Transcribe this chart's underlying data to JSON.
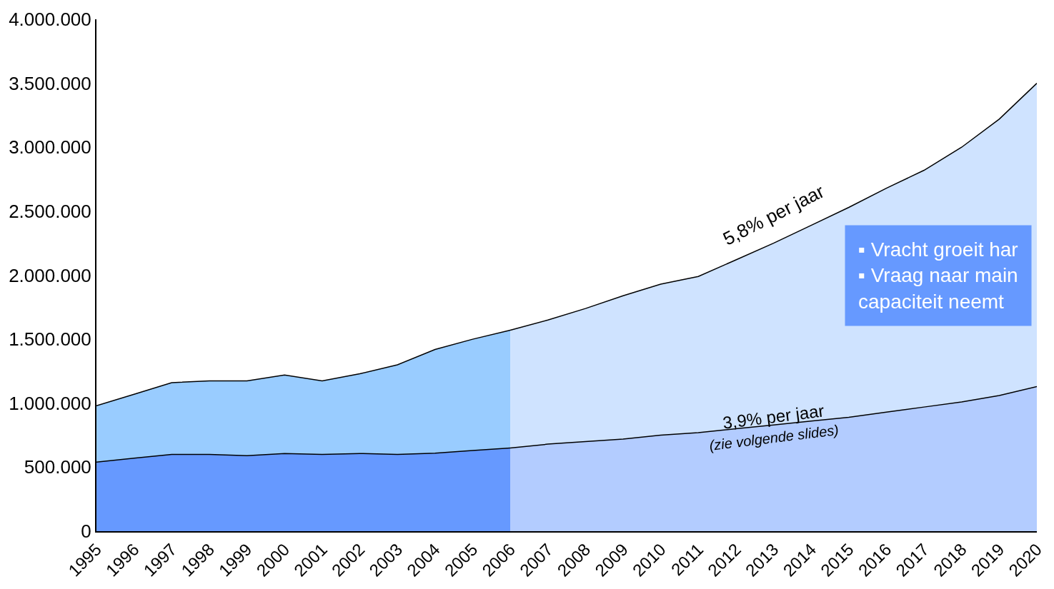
{
  "chart_data": {
    "type": "area",
    "categories": [
      "1995",
      "1996",
      "1997",
      "1998",
      "1999",
      "2000",
      "2001",
      "2002",
      "2003",
      "2004",
      "2005",
      "2006",
      "2007",
      "2008",
      "2009",
      "2010",
      "2011",
      "2012",
      "2013",
      "2014",
      "2015",
      "2016",
      "2017",
      "2018",
      "2019",
      "2020"
    ],
    "series": [
      {
        "color": "#99ccff",
        "values": [
          980000,
          1070000,
          1160000,
          1175000,
          1175000,
          1220000,
          1175000,
          1230000,
          1300000,
          1420000,
          1500000,
          1570000,
          null,
          null,
          null,
          null,
          null,
          null,
          null,
          null,
          null,
          null,
          null,
          null,
          null,
          null
        ]
      },
      {
        "color": "#6699ff",
        "values": [
          540000,
          570000,
          600000,
          600000,
          590000,
          607000,
          600000,
          607000,
          600000,
          610000,
          630000,
          650000,
          null,
          null,
          null,
          null,
          null,
          null,
          null,
          null,
          null,
          null,
          null,
          null,
          null,
          null
        ]
      },
      {
        "color": "#cfe3ff",
        "values": [
          null,
          null,
          null,
          null,
          null,
          null,
          null,
          null,
          null,
          null,
          null,
          1570000,
          1650000,
          1740000,
          1840000,
          1930000,
          1990000,
          2120000,
          2250000,
          2390000,
          2530000,
          2680000,
          2820000,
          3000000,
          3220000,
          3500000
        ]
      },
      {
        "color": "#b3ccff",
        "values": [
          null,
          null,
          null,
          null,
          null,
          null,
          null,
          null,
          null,
          null,
          null,
          650000,
          680000,
          700000,
          720000,
          750000,
          770000,
          800000,
          830000,
          860000,
          890000,
          930000,
          970000,
          1010000,
          1060000,
          1130000
        ]
      }
    ],
    "ylim": [
      0,
      4000000
    ],
    "yticks": [
      0,
      {
        "value": 500000,
        "label": "500.000"
      },
      {
        "value": 1000000,
        "label": "1.000.000"
      },
      {
        "value": 1500000,
        "label": "1.500.000"
      },
      {
        "value": 2000000,
        "label": "2.000.000"
      },
      {
        "value": 2500000,
        "label": "2.500.000"
      },
      {
        "value": 3000000,
        "label": "3.000.000"
      },
      {
        "value": 3500000,
        "label": "3.500.000"
      },
      {
        "value": 4000000,
        "label": "4.000.000"
      }
    ],
    "annotations": [
      {
        "text": "5,8% per jaar",
        "x": "2013",
        "y": 2250000
      },
      {
        "text": "3,9% per jaar",
        "x": "2013",
        "y": 830000
      },
      {
        "text": "(zie volgende slides)",
        "x": "2013",
        "y": 830000
      },
      "▪ Vracht groeit har",
      "▪ Vraag naar main",
      "capaciteit neemt"
    ]
  }
}
